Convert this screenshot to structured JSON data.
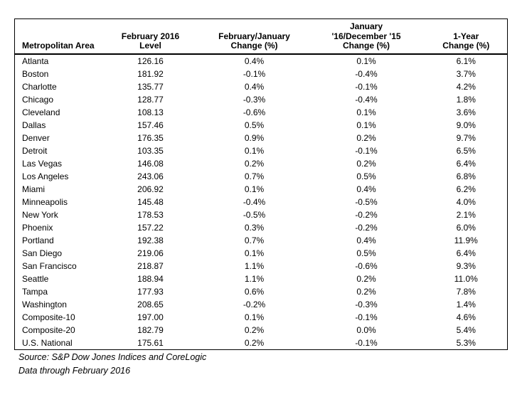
{
  "table": {
    "columns": [
      {
        "id": "metropolitan-area",
        "align": "left",
        "header_lines": [
          "Metropolitan Area"
        ]
      },
      {
        "id": "level",
        "align": "center",
        "header_lines": [
          "February 2016",
          "Level"
        ]
      },
      {
        "id": "feb-jan-change",
        "align": "center",
        "header_lines": [
          "February/January",
          "Change (%)"
        ]
      },
      {
        "id": "jan-dec-change",
        "align": "center",
        "header_lines": [
          "January",
          "'16/December '15",
          "Change (%)"
        ]
      },
      {
        "id": "one-year-change",
        "align": "center",
        "header_lines": [
          "1-Year",
          "Change (%)"
        ]
      }
    ],
    "rows": [
      [
        "Atlanta",
        "126.16",
        "0.4%",
        "0.1%",
        "6.1%"
      ],
      [
        "Boston",
        "181.92",
        "-0.1%",
        "-0.4%",
        "3.7%"
      ],
      [
        "Charlotte",
        "135.77",
        "0.4%",
        "-0.1%",
        "4.2%"
      ],
      [
        "Chicago",
        "128.77",
        "-0.3%",
        "-0.4%",
        "1.8%"
      ],
      [
        "Cleveland",
        "108.13",
        "-0.6%",
        "0.1%",
        "3.6%"
      ],
      [
        "Dallas",
        "157.46",
        "0.5%",
        "0.1%",
        "9.0%"
      ],
      [
        "Denver",
        "176.35",
        "0.9%",
        "0.2%",
        "9.7%"
      ],
      [
        "Detroit",
        "103.35",
        "0.1%",
        "-0.1%",
        "6.5%"
      ],
      [
        "Las Vegas",
        "146.08",
        "0.2%",
        "0.2%",
        "6.4%"
      ],
      [
        "Los Angeles",
        "243.06",
        "0.7%",
        "0.5%",
        "6.8%"
      ],
      [
        "Miami",
        "206.92",
        "0.1%",
        "0.4%",
        "6.2%"
      ],
      [
        "Minneapolis",
        "145.48",
        "-0.4%",
        "-0.5%",
        "4.0%"
      ],
      [
        "New York",
        "178.53",
        "-0.5%",
        "-0.2%",
        "2.1%"
      ],
      [
        "Phoenix",
        "157.22",
        "0.3%",
        "-0.2%",
        "6.0%"
      ],
      [
        "Portland",
        "192.38",
        "0.7%",
        "0.4%",
        "11.9%"
      ],
      [
        "San Diego",
        "219.06",
        "0.1%",
        "0.5%",
        "6.4%"
      ],
      [
        "San Francisco",
        "218.87",
        "1.1%",
        "-0.6%",
        "9.3%"
      ],
      [
        "Seattle",
        "188.94",
        "1.1%",
        "0.2%",
        "11.0%"
      ],
      [
        "Tampa",
        "177.93",
        "0.6%",
        "0.2%",
        "7.8%"
      ],
      [
        "Washington",
        "208.65",
        "-0.2%",
        "-0.3%",
        "1.4%"
      ],
      [
        "Composite-10",
        "197.00",
        "0.1%",
        "-0.1%",
        "4.6%"
      ],
      [
        "Composite-20",
        "182.79",
        "0.2%",
        "0.0%",
        "5.4%"
      ],
      [
        "U.S. National",
        "175.61",
        "0.2%",
        "-0.1%",
        "5.3%"
      ]
    ]
  },
  "footer": {
    "source": "Source: S&P Dow Jones Indices and CoreLogic",
    "data_through": "Data through February 2016"
  },
  "colors": {
    "text": "#000000",
    "border": "#000000",
    "background": "#ffffff"
  }
}
